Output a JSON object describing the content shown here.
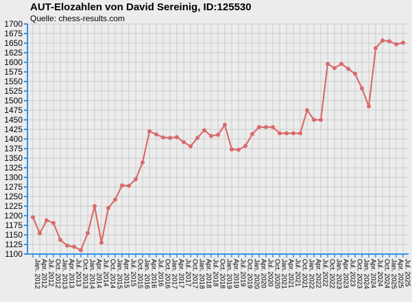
{
  "title": "AUT-Elozahlen von David Sereinig, ID:125530",
  "source": "Quelle: chess-results.com",
  "colors": {
    "background": "#ececec",
    "grid": "#cccccc",
    "axis": "#2f8fe6",
    "line": "#d96a6a",
    "text": "#000000"
  },
  "chart_data": {
    "type": "line",
    "title": "AUT-Elozahlen von David Sereinig, ID:125530",
    "ylim": [
      1100,
      1700
    ],
    "ystep": 25,
    "grid": true,
    "y_ticks": [
      1100,
      1125,
      1150,
      1175,
      1200,
      1225,
      1250,
      1275,
      1300,
      1325,
      1350,
      1375,
      1400,
      1425,
      1450,
      1475,
      1500,
      1525,
      1550,
      1575,
      1600,
      1625,
      1650,
      1675,
      1700
    ],
    "x_ticks": [
      "Jan. 2012",
      "Apr. 2012",
      "Jul. 2012",
      "Oct. 2012",
      "Jan. 2013",
      "Apr. 2013",
      "Jul. 2013",
      "Oct. 2013",
      "Jan. 2014",
      "Apr. 2014",
      "Jul. 2014",
      "Oct. 2014",
      "Jan. 2015",
      "Apr. 2015",
      "Jul. 2015",
      "Oct. 2015",
      "Jan. 2016",
      "Apr. 2016",
      "Jul. 2016",
      "Oct. 2016",
      "Jan. 2017",
      "Apr. 2017",
      "Jul. 2017",
      "Oct. 2017",
      "Jan. 2018",
      "Apr. 2018",
      "Jul. 2018",
      "Oct. 2018",
      "Jan. 2019",
      "Apr. 2019",
      "Jul. 2019",
      "Oct. 2019",
      "Jan. 2020",
      "Apr. 2020",
      "Jul. 2020",
      "Oct. 2020",
      "Jan. 2021",
      "Apr. 2021",
      "Jul. 2021",
      "Oct. 2021",
      "Jan. 2022",
      "Apr. 2022",
      "Jul. 2022",
      "Oct. 2022",
      "Jan. 2023",
      "Apr. 2023",
      "Jul. 2023",
      "Oct. 2023",
      "Jan. 2024",
      "Apr. 2024",
      "Jul. 2024",
      "Oct. 2024",
      "Jan. 2025",
      "Apr. 2025",
      "Jul. 2025"
    ],
    "series": [
      {
        "x": [
          "Jan. 2012",
          "Apr. 2012",
          "Jul. 2012",
          "Oct. 2012",
          "Jan. 2013",
          "Apr. 2013",
          "Jul. 2013",
          "Oct. 2013",
          "Jan. 2014",
          "Apr. 2014",
          "Jul. 2014",
          "Oct. 2014",
          "Jan. 2015",
          "Apr. 2015",
          "Jul. 2015",
          "Oct. 2015",
          "Jan. 2016",
          "Apr. 2016",
          "Jul. 2016",
          "Oct. 2016",
          "Jan. 2017",
          "Apr. 2017",
          "Jul. 2017",
          "Oct. 2017",
          "Jan. 2018",
          "Apr. 2018",
          "Jul. 2018",
          "Oct. 2018",
          "Jan. 2019",
          "Apr. 2019",
          "Jul. 2019",
          "Oct. 2019",
          "Jan. 2020",
          "Apr. 2020",
          "Jul. 2020",
          "Oct. 2020",
          "Jan. 2021",
          "Apr. 2021",
          "Jul. 2021",
          "Oct. 2021",
          "Jan. 2022",
          "Apr. 2022",
          "Jul. 2022",
          "Oct. 2022",
          "Jan. 2023",
          "Apr. 2023",
          "Jul. 2023",
          "Oct. 2023",
          "Jan. 2024",
          "Apr. 2024",
          "Jul. 2024",
          "Oct. 2024",
          "Jan. 2025",
          "Apr. 2025",
          "Jul. 2025"
        ],
        "values": [
          1196,
          1154,
          1188,
          1181,
          1137,
          1122,
          1119,
          1110,
          1155,
          1225,
          1130,
          1220,
          1242,
          1279,
          1278,
          1295,
          1339,
          1420,
          1412,
          1404,
          1403,
          1405,
          1392,
          1381,
          1403,
          1423,
          1408,
          1411,
          1437,
          1373,
          1372,
          1382,
          1413,
          1431,
          1431,
          1431,
          1415,
          1415,
          1415,
          1415,
          1475,
          1450,
          1450,
          1596,
          1585,
          1596,
          1583,
          1570,
          1532,
          1485,
          1637,
          1657,
          1655,
          1647,
          1651
        ]
      }
    ]
  }
}
